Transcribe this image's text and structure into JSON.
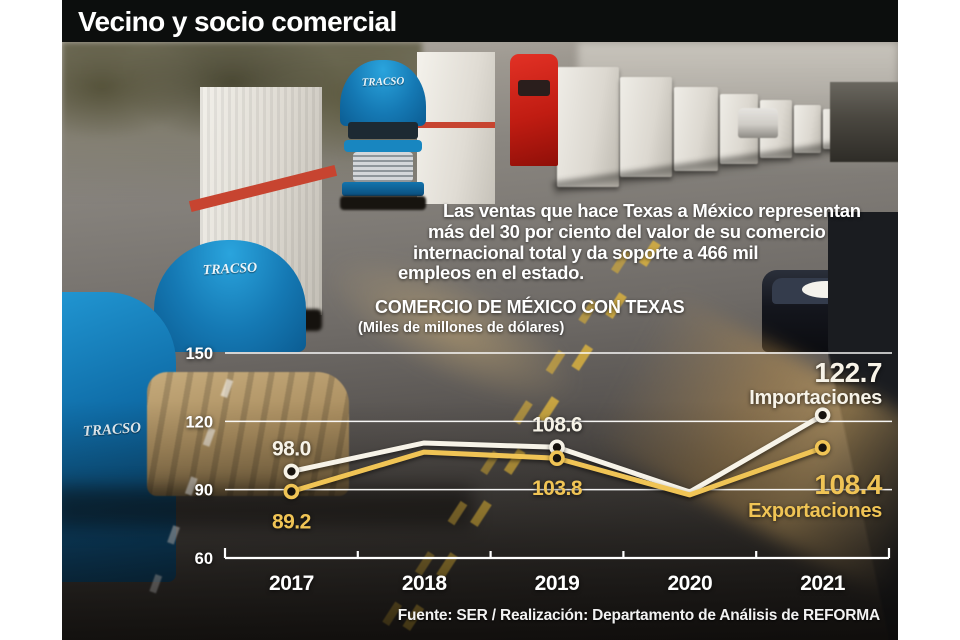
{
  "masthead": {
    "title": "Vecino y socio comercial"
  },
  "intro": {
    "lines": [
      "Las ventas que hace Texas a México representan",
      "más del 30 por ciento del valor de su comercio",
      "internacional total y da soporte a 466 mil",
      "empleos en el estado."
    ]
  },
  "photo": {
    "truck_brand": "TRACSO"
  },
  "chart_data": {
    "type": "line",
    "title": "COMERCIO DE MÉXICO CON TEXAS",
    "subtitle": "(Miles de millones de dólares)",
    "categories": [
      "2017",
      "2018",
      "2019",
      "2020",
      "2021"
    ],
    "series": [
      {
        "name": "Importaciones",
        "color": "#f7f3e8",
        "values": [
          98.0,
          110.5,
          108.6,
          89.0,
          122.7
        ],
        "point_labels": [
          "98.0",
          "",
          "108.6",
          "",
          ""
        ],
        "end_label": "122.7"
      },
      {
        "name": "Exportaciones",
        "color": "#f0c455",
        "values": [
          89.2,
          106.5,
          103.8,
          87.7,
          108.4
        ],
        "point_labels": [
          "89.2",
          "",
          "103.8",
          "",
          ""
        ],
        "end_label": "108.4"
      }
    ],
    "ylim": [
      60,
      150
    ],
    "yticks": [
      60,
      90,
      120,
      150
    ],
    "grid": true,
    "legend_position": "end-of-line"
  },
  "footer": {
    "credit": "Fuente: SER / Realización: Departamento de Análisis de REFORMA"
  }
}
